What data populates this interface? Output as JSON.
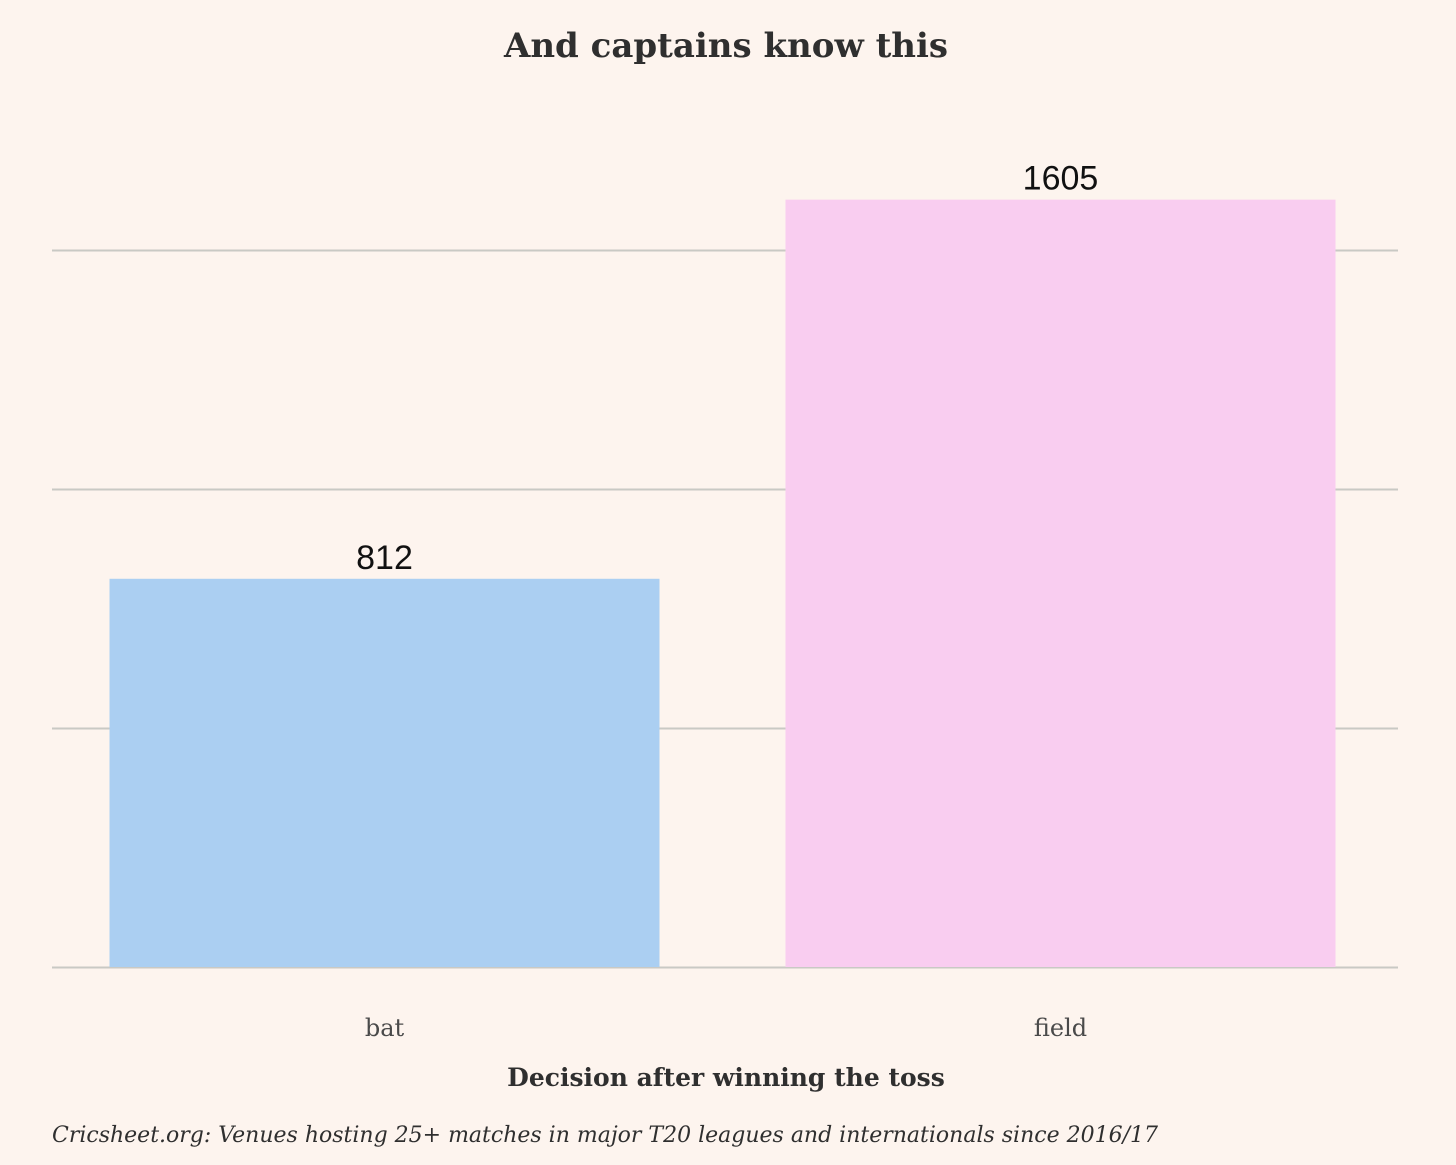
{
  "chart_data": {
    "type": "bar",
    "title": "And captains know this",
    "categories": [
      "bat",
      "field"
    ],
    "values": [
      812,
      1605
    ],
    "data_labels": [
      "812",
      "1605"
    ],
    "colors": [
      "#abcff2",
      "#f9cdf0"
    ],
    "xlabel": "Decision after winning the toss",
    "ylabel": "",
    "ylim": [
      0,
      1650
    ],
    "y_gridlines": [
      0,
      500,
      1000,
      1500
    ],
    "grid": true,
    "legend": "none",
    "caption": "Cricsheet.org: Venues hosting 25+ matches in major T20 leagues and internationals since 2016/17"
  },
  "colors": {
    "background": "#fdf4ee",
    "gridline": "#c9c9c4"
  }
}
